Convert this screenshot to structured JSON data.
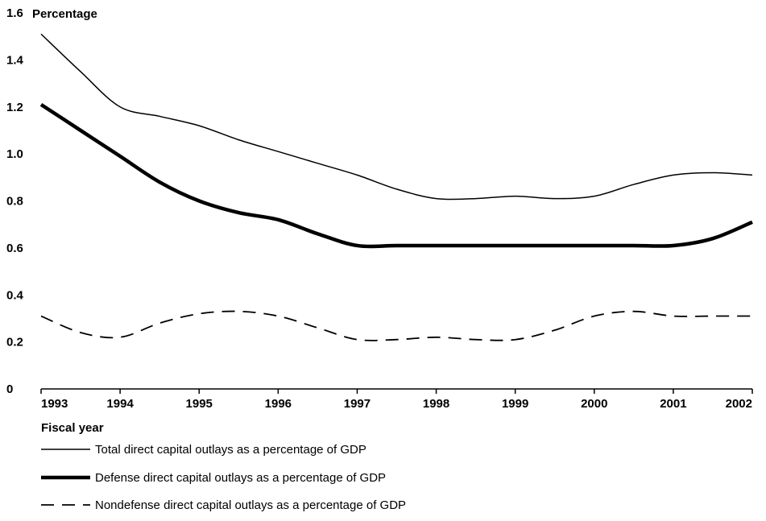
{
  "chart_data": {
    "type": "line",
    "ylabel": "Percentage",
    "xlabel": "Fiscal year",
    "ylim": [
      0,
      1.6
    ],
    "xlim": [
      1993,
      2002
    ],
    "y_ticks": [
      "0",
      "0.2",
      "0.4",
      "0.6",
      "0.8",
      "1.0",
      "1.2",
      "1.4",
      "1.6"
    ],
    "y_tick_values": [
      0,
      0.2,
      0.4,
      0.6,
      0.8,
      1.0,
      1.2,
      1.4,
      1.6
    ],
    "x_ticks": [
      "1993",
      "1994",
      "1995",
      "1996",
      "1997",
      "1998",
      "1999",
      "2000",
      "2001",
      "2002"
    ],
    "x_tick_values": [
      1993,
      1994,
      1995,
      1996,
      1997,
      1998,
      1999,
      2000,
      2001,
      2002
    ],
    "grid": false,
    "legend_position": "bottom-left",
    "series": [
      {
        "name": "Total direct capital outlays as a percentage of GDP",
        "style": "thin-solid",
        "color": "#000000",
        "x": [
          1993,
          1993.5,
          1994,
          1994.5,
          1995,
          1995.5,
          1996,
          1996.5,
          1997,
          1997.5,
          1998,
          1998.5,
          1999,
          1999.5,
          2000,
          2000.5,
          2001,
          2001.5,
          2002
        ],
        "values": [
          1.51,
          1.35,
          1.2,
          1.16,
          1.12,
          1.06,
          1.01,
          0.96,
          0.91,
          0.85,
          0.81,
          0.81,
          0.82,
          0.81,
          0.82,
          0.87,
          0.91,
          0.92,
          0.91
        ]
      },
      {
        "name": "Defense direct capital outlays as a percentage of GDP",
        "style": "thick-solid",
        "color": "#000000",
        "x": [
          1993,
          1993.5,
          1994,
          1994.5,
          1995,
          1995.5,
          1996,
          1996.5,
          1997,
          1997.5,
          1998,
          1998.5,
          1999,
          1999.5,
          2000,
          2000.5,
          2001,
          2001.5,
          2002
        ],
        "values": [
          1.21,
          1.1,
          0.99,
          0.88,
          0.8,
          0.75,
          0.72,
          0.66,
          0.61,
          0.61,
          0.61,
          0.61,
          0.61,
          0.61,
          0.61,
          0.61,
          0.61,
          0.64,
          0.71
        ]
      },
      {
        "name": "Nondefense direct capital outlays as a percentage of GDP",
        "style": "dashed",
        "color": "#000000",
        "x": [
          1993,
          1993.5,
          1994,
          1994.5,
          1995,
          1995.5,
          1996,
          1996.5,
          1997,
          1997.5,
          1998,
          1998.5,
          1999,
          1999.5,
          2000,
          2000.5,
          2001,
          2001.5,
          2002
        ],
        "values": [
          0.31,
          0.24,
          0.22,
          0.28,
          0.32,
          0.33,
          0.31,
          0.26,
          0.21,
          0.21,
          0.22,
          0.21,
          0.21,
          0.25,
          0.31,
          0.33,
          0.31,
          0.31,
          0.31
        ]
      }
    ]
  }
}
